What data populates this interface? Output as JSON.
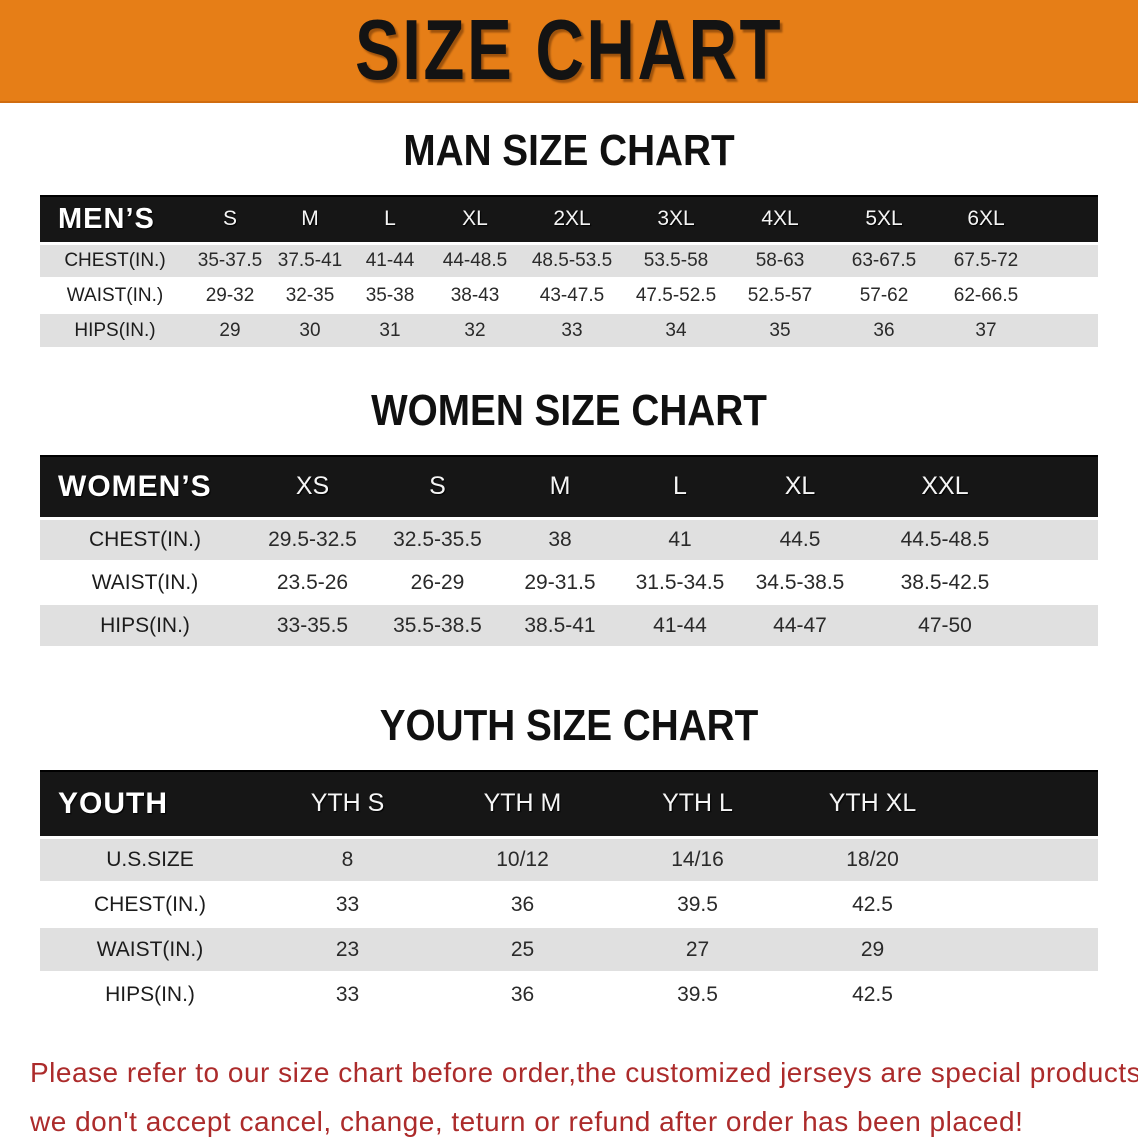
{
  "banner": {
    "title": "SIZE CHART"
  },
  "colors": {
    "banner_bg": "#e67e17",
    "header_bar": "#161616",
    "row_stripe": "#e0e0e0",
    "disclaimer_red": "#ac2b2b"
  },
  "sections": [
    {
      "heading": "MAN SIZE CHART",
      "corner": "MEN’S",
      "columns": [
        "S",
        "M",
        "L",
        "XL",
        "2XL",
        "3XL",
        "4XL",
        "5XL",
        "6XL"
      ],
      "rows": [
        {
          "label": "CHEST(IN.)",
          "values": [
            "35-37.5",
            "37.5-41",
            "41-44",
            "44-48.5",
            "48.5-53.5",
            "53.5-58",
            "58-63",
            "63-67.5",
            "67.5-72"
          ]
        },
        {
          "label": "WAIST(IN.)",
          "values": [
            "29-32",
            "32-35",
            "35-38",
            "38-43",
            "43-47.5",
            "47.5-52.5",
            "52.5-57",
            "57-62",
            "62-66.5"
          ]
        },
        {
          "label": "HIPS(IN.)",
          "values": [
            "29",
            "30",
            "31",
            "32",
            "33",
            "34",
            "35",
            "36",
            "37"
          ]
        }
      ]
    },
    {
      "heading": "WOMEN SIZE CHART",
      "corner": "WOMEN’S",
      "columns": [
        "XS",
        "S",
        "M",
        "L",
        "XL",
        "XXL"
      ],
      "rows": [
        {
          "label": "CHEST(IN.)",
          "values": [
            "29.5-32.5",
            "32.5-35.5",
            "38",
            "41",
            "44.5",
            "44.5-48.5"
          ]
        },
        {
          "label": "WAIST(IN.)",
          "values": [
            "23.5-26",
            "26-29",
            "29-31.5",
            "31.5-34.5",
            "34.5-38.5",
            "38.5-42.5"
          ]
        },
        {
          "label": "HIPS(IN.)",
          "values": [
            "33-35.5",
            "35.5-38.5",
            "38.5-41",
            "41-44",
            "44-47",
            "47-50"
          ]
        }
      ]
    },
    {
      "heading": "YOUTH SIZE CHART",
      "corner": "YOUTH",
      "columns": [
        "YTH S",
        "YTH M",
        "YTH L",
        "YTH XL"
      ],
      "rows": [
        {
          "label": "U.S.SIZE",
          "values": [
            "8",
            "10/12",
            "14/16",
            "18/20"
          ]
        },
        {
          "label": "CHEST(IN.)",
          "values": [
            "33",
            "36",
            "39.5",
            "42.5"
          ]
        },
        {
          "label": "WAIST(IN.)",
          "values": [
            "23",
            "25",
            "27",
            "29"
          ]
        },
        {
          "label": "HIPS(IN.)",
          "values": [
            "33",
            "36",
            "39.5",
            "42.5"
          ]
        }
      ]
    }
  ],
  "disclaimer": {
    "line1": "Please refer to our size chart before order,the customized jerseys are special products,",
    "line2": "we don't accept cancel, change, teturn or refund after order has been placed!"
  }
}
